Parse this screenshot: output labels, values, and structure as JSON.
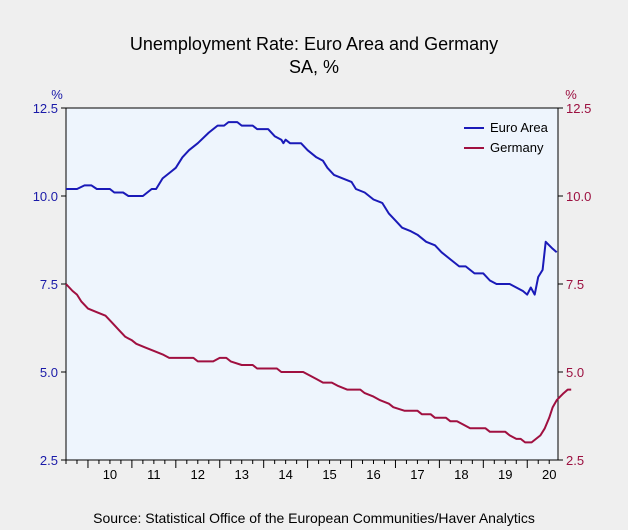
{
  "chart_data": {
    "type": "line",
    "title": "Unemployment Rate: Euro Area and Germany",
    "subtitle": "SA, %",
    "left_axis_unit": "%",
    "right_axis_unit": "%",
    "ylim": [
      2.5,
      12.5
    ],
    "yticks": [
      "12.5",
      "10.0",
      "7.5",
      "5.0",
      "2.5"
    ],
    "x_start": 2009.5,
    "x_end": 2020.7,
    "x_tick_labels": [
      "10",
      "11",
      "12",
      "13",
      "14",
      "15",
      "16",
      "17",
      "18",
      "19",
      "20"
    ],
    "grid": false,
    "legend_position": "top-right",
    "source": "Source:  Statistical Office of the European Communities/Haver Analytics",
    "colors": {
      "euro_area": "#1a1ab8",
      "germany": "#a01040",
      "plot_bg": "#eef5fd",
      "page_bg": "#efefef"
    },
    "series": [
      {
        "name": "Euro Area",
        "points": [
          [
            2009.5,
            10.2
          ],
          [
            2009.75,
            10.2
          ],
          [
            2009.92,
            10.3
          ],
          [
            2010.08,
            10.3
          ],
          [
            2010.2,
            10.2
          ],
          [
            2010.5,
            10.2
          ],
          [
            2010.6,
            10.1
          ],
          [
            2010.8,
            10.1
          ],
          [
            2010.92,
            10.0
          ],
          [
            2011.25,
            10.0
          ],
          [
            2011.45,
            10.2
          ],
          [
            2011.55,
            10.2
          ],
          [
            2011.7,
            10.5
          ],
          [
            2011.9,
            10.7
          ],
          [
            2012.0,
            10.8
          ],
          [
            2012.15,
            11.1
          ],
          [
            2012.3,
            11.3
          ],
          [
            2012.5,
            11.5
          ],
          [
            2012.75,
            11.8
          ],
          [
            2012.95,
            12.0
          ],
          [
            2013.1,
            12.0
          ],
          [
            2013.2,
            12.1
          ],
          [
            2013.4,
            12.1
          ],
          [
            2013.5,
            12.0
          ],
          [
            2013.75,
            12.0
          ],
          [
            2013.85,
            11.9
          ],
          [
            2014.1,
            11.9
          ],
          [
            2014.25,
            11.7
          ],
          [
            2014.4,
            11.6
          ],
          [
            2014.45,
            11.5
          ],
          [
            2014.5,
            11.6
          ],
          [
            2014.6,
            11.5
          ],
          [
            2014.85,
            11.5
          ],
          [
            2015.0,
            11.3
          ],
          [
            2015.2,
            11.1
          ],
          [
            2015.35,
            11.0
          ],
          [
            2015.45,
            10.8
          ],
          [
            2015.6,
            10.6
          ],
          [
            2015.8,
            10.5
          ],
          [
            2016.0,
            10.4
          ],
          [
            2016.1,
            10.2
          ],
          [
            2016.3,
            10.1
          ],
          [
            2016.5,
            9.9
          ],
          [
            2016.7,
            9.8
          ],
          [
            2016.85,
            9.5
          ],
          [
            2017.0,
            9.3
          ],
          [
            2017.15,
            9.1
          ],
          [
            2017.35,
            9.0
          ],
          [
            2017.5,
            8.9
          ],
          [
            2017.7,
            8.7
          ],
          [
            2017.9,
            8.6
          ],
          [
            2018.05,
            8.4
          ],
          [
            2018.25,
            8.2
          ],
          [
            2018.45,
            8.0
          ],
          [
            2018.6,
            8.0
          ],
          [
            2018.8,
            7.8
          ],
          [
            2019.0,
            7.8
          ],
          [
            2019.15,
            7.6
          ],
          [
            2019.3,
            7.5
          ],
          [
            2019.6,
            7.5
          ],
          [
            2019.75,
            7.4
          ],
          [
            2019.9,
            7.3
          ],
          [
            2020.0,
            7.2
          ],
          [
            2020.08,
            7.4
          ],
          [
            2020.17,
            7.2
          ],
          [
            2020.25,
            7.7
          ],
          [
            2020.35,
            7.9
          ],
          [
            2020.42,
            8.7
          ],
          [
            2020.5,
            8.6
          ],
          [
            2020.58,
            8.5
          ],
          [
            2020.67,
            8.4
          ]
        ]
      },
      {
        "name": "Germany",
        "points": [
          [
            2009.5,
            7.5
          ],
          [
            2009.65,
            7.3
          ],
          [
            2009.75,
            7.2
          ],
          [
            2009.85,
            7.0
          ],
          [
            2010.0,
            6.8
          ],
          [
            2010.2,
            6.7
          ],
          [
            2010.4,
            6.6
          ],
          [
            2010.55,
            6.4
          ],
          [
            2010.7,
            6.2
          ],
          [
            2010.85,
            6.0
          ],
          [
            2011.0,
            5.9
          ],
          [
            2011.1,
            5.8
          ],
          [
            2011.3,
            5.7
          ],
          [
            2011.5,
            5.6
          ],
          [
            2011.7,
            5.5
          ],
          [
            2011.85,
            5.4
          ],
          [
            2012.4,
            5.4
          ],
          [
            2012.5,
            5.3
          ],
          [
            2012.85,
            5.3
          ],
          [
            2013.0,
            5.4
          ],
          [
            2013.15,
            5.4
          ],
          [
            2013.25,
            5.3
          ],
          [
            2013.5,
            5.2
          ],
          [
            2013.75,
            5.2
          ],
          [
            2013.85,
            5.1
          ],
          [
            2014.3,
            5.1
          ],
          [
            2014.4,
            5.0
          ],
          [
            2014.9,
            5.0
          ],
          [
            2015.05,
            4.9
          ],
          [
            2015.2,
            4.8
          ],
          [
            2015.35,
            4.7
          ],
          [
            2015.55,
            4.7
          ],
          [
            2015.7,
            4.6
          ],
          [
            2015.9,
            4.5
          ],
          [
            2016.2,
            4.5
          ],
          [
            2016.3,
            4.4
          ],
          [
            2016.5,
            4.3
          ],
          [
            2016.65,
            4.2
          ],
          [
            2016.85,
            4.1
          ],
          [
            2016.95,
            4.0
          ],
          [
            2017.2,
            3.9
          ],
          [
            2017.5,
            3.9
          ],
          [
            2017.6,
            3.8
          ],
          [
            2017.8,
            3.8
          ],
          [
            2017.9,
            3.7
          ],
          [
            2018.15,
            3.7
          ],
          [
            2018.25,
            3.6
          ],
          [
            2018.4,
            3.6
          ],
          [
            2018.55,
            3.5
          ],
          [
            2018.7,
            3.4
          ],
          [
            2019.05,
            3.4
          ],
          [
            2019.15,
            3.3
          ],
          [
            2019.5,
            3.3
          ],
          [
            2019.6,
            3.2
          ],
          [
            2019.75,
            3.1
          ],
          [
            2019.85,
            3.1
          ],
          [
            2019.95,
            3.0
          ],
          [
            2020.1,
            3.0
          ],
          [
            2020.2,
            3.1
          ],
          [
            2020.3,
            3.2
          ],
          [
            2020.4,
            3.4
          ],
          [
            2020.5,
            3.7
          ],
          [
            2020.58,
            4.0
          ],
          [
            2020.67,
            4.2
          ],
          [
            2020.75,
            4.3
          ],
          [
            2020.83,
            4.4
          ],
          [
            2020.92,
            4.5
          ],
          [
            2021.0,
            4.5
          ]
        ]
      }
    ]
  }
}
